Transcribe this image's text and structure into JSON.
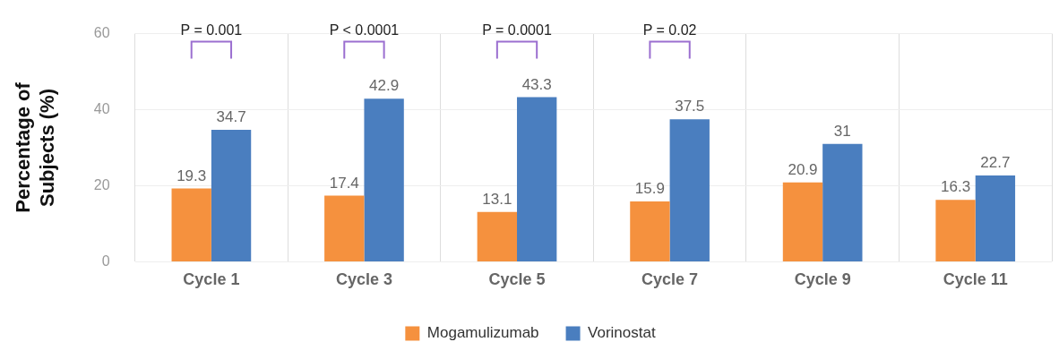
{
  "chart_data": {
    "type": "bar",
    "ylabel": "Percentage of\nSubjects (%)",
    "categories": [
      "Cycle 1",
      "Cycle 3",
      "Cycle 5",
      "Cycle 7",
      "Cycle 9",
      "Cycle 11"
    ],
    "series": [
      {
        "name": "Mogamulizumab",
        "color": "#f5913e",
        "values": [
          19.3,
          17.4,
          13.1,
          15.9,
          20.9,
          16.3
        ]
      },
      {
        "name": "Vorinostat",
        "color": "#4a7ebf",
        "values": [
          34.7,
          42.9,
          43.3,
          37.5,
          31,
          22.7
        ]
      }
    ],
    "ylim": [
      0,
      60
    ],
    "yticks": [
      0,
      20,
      40,
      60
    ],
    "grid": true,
    "legend": "bottom",
    "data_labels": true,
    "annotations": [
      "P = 0.001",
      "P < 0.0001",
      "P = 0.0001",
      "P = 0.02"
    ]
  }
}
